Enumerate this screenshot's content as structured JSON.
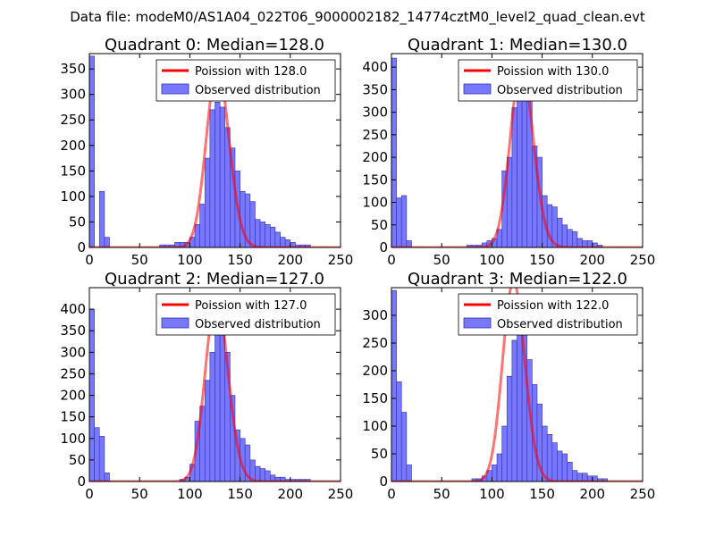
{
  "figure": {
    "suptitle": "Data file: modeM0/AS1A04_022T06_9000002182_14774cztM0_level2_quad_clean.evt"
  },
  "colors": {
    "hist_fill": "#7777ff",
    "hist_edge": "#3333aa",
    "poisson_line": "#ff0000"
  },
  "chart_data": [
    {
      "type": "bar",
      "title": "Quadrant 0: Median=128.0",
      "xlim": [
        0,
        250
      ],
      "ylim": [
        0,
        380
      ],
      "xticks": [
        "0",
        "50",
        "100",
        "150",
        "200",
        "250"
      ],
      "yticks": [
        0,
        50,
        100,
        150,
        200,
        250,
        300,
        350
      ],
      "legend": [
        "Poission with 128.0",
        "Observed distribution"
      ],
      "median": 128,
      "series": [
        {
          "name": "Observed distribution",
          "bin_width": 5,
          "bins": [
            [
              0,
              375
            ],
            [
              5,
              0
            ],
            [
              10,
              110
            ],
            [
              15,
              20
            ],
            [
              70,
              5
            ],
            [
              75,
              5
            ],
            [
              80,
              5
            ],
            [
              85,
              10
            ],
            [
              90,
              10
            ],
            [
              95,
              10
            ],
            [
              100,
              20
            ],
            [
              105,
              45
            ],
            [
              110,
              85
            ],
            [
              115,
              175
            ],
            [
              120,
              270
            ],
            [
              125,
              285
            ],
            [
              130,
              275
            ],
            [
              135,
              235
            ],
            [
              140,
              195
            ],
            [
              145,
              150
            ],
            [
              150,
              110
            ],
            [
              155,
              105
            ],
            [
              160,
              90
            ],
            [
              165,
              55
            ],
            [
              170,
              50
            ],
            [
              175,
              45
            ],
            [
              180,
              40
            ],
            [
              185,
              30
            ],
            [
              190,
              20
            ],
            [
              195,
              15
            ],
            [
              200,
              10
            ],
            [
              205,
              5
            ],
            [
              210,
              5
            ],
            [
              215,
              5
            ]
          ]
        },
        {
          "name": "Poission with 128.0",
          "curve": "poisson",
          "mean": 128,
          "scale": 10000
        }
      ]
    },
    {
      "type": "bar",
      "title": "Quadrant 1: Median=130.0",
      "xlim": [
        0,
        250
      ],
      "ylim": [
        0,
        430
      ],
      "xticks": [
        "0",
        "50",
        "100",
        "150",
        "200",
        "250"
      ],
      "yticks": [
        0,
        50,
        100,
        150,
        200,
        250,
        300,
        350,
        400
      ],
      "legend": [
        "Poission with 130.0",
        "Observed distribution"
      ],
      "median": 130,
      "series": [
        {
          "name": "Observed distribution",
          "bin_width": 5,
          "bins": [
            [
              0,
              420
            ],
            [
              5,
              110
            ],
            [
              10,
              115
            ],
            [
              15,
              15
            ],
            [
              75,
              5
            ],
            [
              80,
              5
            ],
            [
              85,
              5
            ],
            [
              90,
              10
            ],
            [
              95,
              15
            ],
            [
              100,
              20
            ],
            [
              105,
              40
            ],
            [
              110,
              170
            ],
            [
              115,
              200
            ],
            [
              120,
              310
            ],
            [
              125,
              375
            ],
            [
              130,
              380
            ],
            [
              135,
              330
            ],
            [
              140,
              225
            ],
            [
              145,
              200
            ],
            [
              150,
              115
            ],
            [
              155,
              95
            ],
            [
              160,
              90
            ],
            [
              165,
              65
            ],
            [
              170,
              50
            ],
            [
              175,
              40
            ],
            [
              180,
              35
            ],
            [
              185,
              20
            ],
            [
              190,
              15
            ],
            [
              195,
              15
            ],
            [
              200,
              10
            ],
            [
              205,
              5
            ]
          ]
        },
        {
          "name": "Poission with 130.0",
          "curve": "poisson",
          "mean": 130,
          "scale": 11500
        }
      ]
    },
    {
      "type": "bar",
      "title": "Quadrant 2: Median=127.0",
      "xlim": [
        0,
        250
      ],
      "ylim": [
        0,
        450
      ],
      "xticks": [
        "0",
        "50",
        "100",
        "150",
        "200",
        "250"
      ],
      "yticks": [
        0,
        50,
        100,
        150,
        200,
        250,
        300,
        350,
        400
      ],
      "legend": [
        "Poission with 127.0",
        "Observed distribution"
      ],
      "median": 127,
      "series": [
        {
          "name": "Observed distribution",
          "bin_width": 5,
          "bins": [
            [
              0,
              400
            ],
            [
              5,
              125
            ],
            [
              10,
              105
            ],
            [
              15,
              20
            ],
            [
              90,
              5
            ],
            [
              95,
              10
            ],
            [
              100,
              40
            ],
            [
              105,
              140
            ],
            [
              110,
              175
            ],
            [
              115,
              235
            ],
            [
              120,
              300
            ],
            [
              125,
              380
            ],
            [
              130,
              385
            ],
            [
              135,
              300
            ],
            [
              140,
              200
            ],
            [
              145,
              120
            ],
            [
              150,
              100
            ],
            [
              155,
              85
            ],
            [
              160,
              50
            ],
            [
              165,
              35
            ],
            [
              170,
              30
            ],
            [
              175,
              25
            ],
            [
              180,
              15
            ],
            [
              185,
              10
            ],
            [
              190,
              10
            ],
            [
              195,
              5
            ],
            [
              200,
              5
            ],
            [
              205,
              5
            ],
            [
              210,
              5
            ],
            [
              215,
              5
            ]
          ]
        },
        {
          "name": "Poission with 127.0",
          "curve": "poisson",
          "mean": 127,
          "scale": 12000
        }
      ]
    },
    {
      "type": "bar",
      "title": "Quadrant 3: Median=122.0",
      "xlim": [
        0,
        250
      ],
      "ylim": [
        0,
        350
      ],
      "xticks": [
        "0",
        "50",
        "100",
        "150",
        "200",
        "250"
      ],
      "yticks": [
        0,
        50,
        100,
        150,
        200,
        250,
        300
      ],
      "legend": [
        "Poission with 122.0",
        "Observed distribution"
      ],
      "median": 122,
      "series": [
        {
          "name": "Observed distribution",
          "bin_width": 5,
          "bins": [
            [
              0,
              345
            ],
            [
              5,
              180
            ],
            [
              10,
              125
            ],
            [
              15,
              30
            ],
            [
              80,
              5
            ],
            [
              85,
              5
            ],
            [
              90,
              10
            ],
            [
              95,
              20
            ],
            [
              100,
              30
            ],
            [
              105,
              50
            ],
            [
              110,
              100
            ],
            [
              115,
              190
            ],
            [
              120,
              255
            ],
            [
              125,
              335
            ],
            [
              130,
              300
            ],
            [
              135,
              220
            ],
            [
              140,
              175
            ],
            [
              145,
              140
            ],
            [
              150,
              100
            ],
            [
              155,
              85
            ],
            [
              160,
              70
            ],
            [
              165,
              55
            ],
            [
              170,
              50
            ],
            [
              175,
              35
            ],
            [
              180,
              20
            ],
            [
              185,
              15
            ],
            [
              190,
              15
            ],
            [
              195,
              10
            ],
            [
              200,
              10
            ],
            [
              205,
              5
            ],
            [
              210,
              5
            ]
          ]
        },
        {
          "name": "Poission with 122.0",
          "curve": "poisson",
          "mean": 122,
          "scale": 10000
        }
      ]
    }
  ]
}
